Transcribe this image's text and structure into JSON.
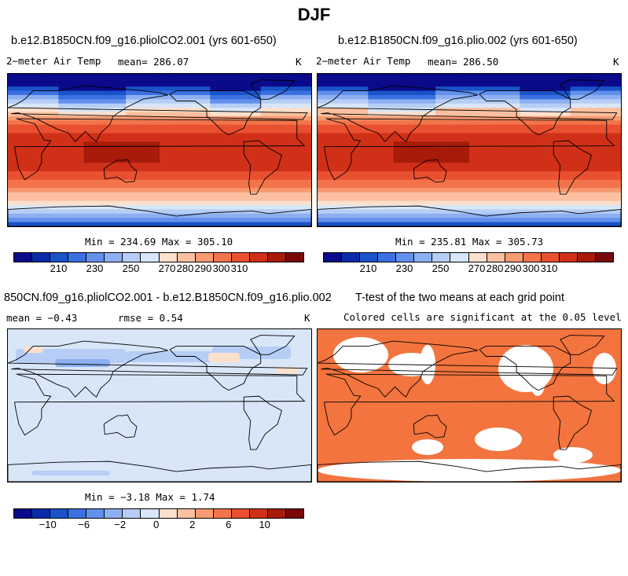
{
  "main_title": "DJF",
  "panel_a": {
    "title": "b.e12.B1850CN.f09_g16.pliolCO2.001 (yrs 601-650)",
    "variable": "2−meter Air Temp",
    "mean": "mean= 286.07",
    "units": "K",
    "minmax": "Min = 234.69 Max = 305.10"
  },
  "panel_b": {
    "title": "b.e12.B1850CN.f09_g16.plio.002 (yrs 601-650)",
    "variable": "2−meter Air Temp",
    "mean": "mean= 286.50",
    "units": "K",
    "minmax": "Min = 235.81 Max = 305.73"
  },
  "panel_c": {
    "title": "850CN.f09_g16.pliolCO2.001 - b.e12.B1850CN.f09_g16.plio.002",
    "mean": "mean =   −0.43",
    "rmse": "rmse =    0.54",
    "units": "K",
    "minmax": "Min =  −3.18 Max =   1.74"
  },
  "panel_d": {
    "title": "T-test of the two means at each grid point",
    "subtitle": "Colored cells are significant at the 0.05 level"
  },
  "colorbar_temp": {
    "colors": [
      "#0a0a8a",
      "#0b2ca8",
      "#1a52c8",
      "#3a70e0",
      "#6290ec",
      "#8cb0f2",
      "#b6cef6",
      "#d8e6f8",
      "#fde0cc",
      "#fbc0a0",
      "#f89a72",
      "#f3744a",
      "#e85030",
      "#d03018",
      "#a81a0a",
      "#780808"
    ],
    "ticks": [
      "210",
      "230",
      "250",
      "270",
      "280",
      "290",
      "300",
      "310"
    ]
  },
  "colorbar_diff": {
    "colors": [
      "#0a0a8a",
      "#0b2ca8",
      "#1a52c8",
      "#3a70e0",
      "#6290ec",
      "#8cb0f2",
      "#b6cef6",
      "#d8e6f8",
      "#fde0cc",
      "#fbc0a0",
      "#f89a72",
      "#f3744a",
      "#e85030",
      "#d03018",
      "#a81a0a",
      "#780808"
    ],
    "ticks": [
      "−10",
      "−6",
      "−2",
      "0",
      "2",
      "6",
      "10"
    ]
  },
  "chart_data": [
    {
      "type": "heatmap",
      "title": "b.e12.B1850CN.f09_g16.pliolCO2.001 (yrs 601-650)",
      "variable": "2-meter Air Temp",
      "units": "K",
      "mean": 286.07,
      "min": 234.69,
      "max": 305.1,
      "colorbar_range": [
        205,
        315
      ],
      "colorbar_ticks": [
        210,
        230,
        250,
        270,
        280,
        290,
        300,
        310
      ]
    },
    {
      "type": "heatmap",
      "title": "b.e12.B1850CN.f09_g16.plio.002 (yrs 601-650)",
      "variable": "2-meter Air Temp",
      "units": "K",
      "mean": 286.5,
      "min": 235.81,
      "max": 305.73,
      "colorbar_range": [
        205,
        315
      ],
      "colorbar_ticks": [
        210,
        230,
        250,
        270,
        280,
        290,
        300,
        310
      ]
    },
    {
      "type": "heatmap",
      "title": "850CN.f09_g16.pliolCO2.001 - b.e12.B1850CN.f09_g16.plio.002",
      "units": "K",
      "mean": -0.43,
      "rmse": 0.54,
      "min": -3.18,
      "max": 1.74,
      "colorbar_ticks": [
        -10,
        -6,
        -2,
        0,
        2,
        6,
        10
      ]
    },
    {
      "type": "heatmap",
      "title": "T-test of the two means at each grid point",
      "subtitle": "Colored cells are significant at the 0.05 level",
      "significance_level": 0.05
    }
  ]
}
